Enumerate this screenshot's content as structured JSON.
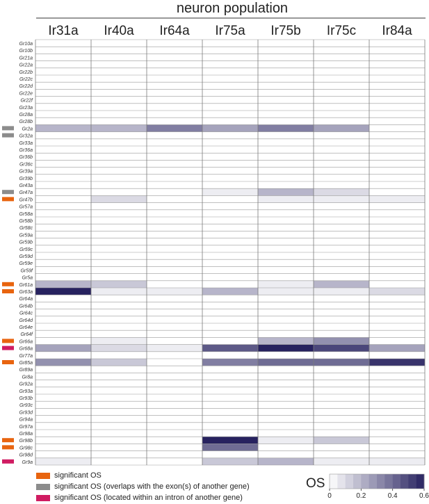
{
  "chart_data": {
    "type": "heatmap",
    "title": "neuron population",
    "columns": [
      "Ir31a",
      "Ir40a",
      "Ir64a",
      "Ir75a",
      "Ir75b",
      "Ir75c",
      "Ir84a"
    ],
    "rows": [
      "Gr10a",
      "Gr10b",
      "Gr21a",
      "Gr22a",
      "Gr22b",
      "Gr22c",
      "Gr22d",
      "Gr22e",
      "Gr22f",
      "Gr23a",
      "Gr28a",
      "Gr28b",
      "Gr2a",
      "Gr32a",
      "Gr33a",
      "Gr36a",
      "Gr36b",
      "Gr36c",
      "Gr39a",
      "Gr39b",
      "Gr43a",
      "Gr47a",
      "Gr47b",
      "Gr57a",
      "Gr58a",
      "Gr58b",
      "Gr58c",
      "Gr59a",
      "Gr59b",
      "Gr59c",
      "Gr59d",
      "Gr59e",
      "Gr59f",
      "Gr5a",
      "Gr61a",
      "Gr63a",
      "Gr64a",
      "Gr64b",
      "Gr64c",
      "Gr64d",
      "Gr64e",
      "Gr64f",
      "Gr66a",
      "Gr68a",
      "Gr77a",
      "Gr85a",
      "Gr89a",
      "Gr8a",
      "Gr92a",
      "Gr93a",
      "Gr93b",
      "Gr93c",
      "Gr93d",
      "Gr94a",
      "Gr97a",
      "Gr98a",
      "Gr98b",
      "Gr98c",
      "Gr98d",
      "Gr9a"
    ],
    "values": [
      [
        0,
        0,
        0,
        0,
        0,
        0,
        0
      ],
      [
        0,
        0,
        0,
        0,
        0,
        0,
        0
      ],
      [
        0,
        0,
        0,
        0,
        0,
        0,
        0
      ],
      [
        0,
        0,
        0,
        0,
        0,
        0,
        0
      ],
      [
        0,
        0,
        0,
        0,
        0,
        0,
        0
      ],
      [
        0,
        0,
        0,
        0,
        0,
        0,
        0
      ],
      [
        0,
        0,
        0,
        0,
        0,
        0,
        0
      ],
      [
        0,
        0,
        0,
        0,
        0,
        0,
        0
      ],
      [
        0,
        0,
        0,
        0,
        0,
        0,
        0
      ],
      [
        0,
        0,
        0,
        0,
        0,
        0,
        0
      ],
      [
        0,
        0,
        0,
        0,
        0,
        0,
        0
      ],
      [
        0,
        0,
        0,
        0,
        0,
        0,
        0
      ],
      [
        0.2,
        0.2,
        0.35,
        0.25,
        0.35,
        0.25,
        0
      ],
      [
        0,
        0,
        0,
        0,
        0,
        0,
        0
      ],
      [
        0,
        0,
        0,
        0,
        0,
        0,
        0
      ],
      [
        0,
        0,
        0,
        0,
        0,
        0,
        0
      ],
      [
        0,
        0,
        0,
        0,
        0,
        0,
        0
      ],
      [
        0,
        0,
        0,
        0,
        0,
        0,
        0
      ],
      [
        0,
        0,
        0,
        0,
        0,
        0,
        0
      ],
      [
        0,
        0,
        0,
        0,
        0,
        0,
        0
      ],
      [
        0,
        0,
        0,
        0,
        0,
        0,
        0
      ],
      [
        0,
        0,
        0,
        0.05,
        0.2,
        0.1,
        0
      ],
      [
        0,
        0.1,
        0,
        0,
        0.05,
        0.05,
        0.05
      ],
      [
        0,
        0,
        0,
        0,
        0,
        0,
        0
      ],
      [
        0,
        0,
        0,
        0,
        0,
        0,
        0
      ],
      [
        0,
        0,
        0,
        0,
        0,
        0,
        0
      ],
      [
        0,
        0,
        0,
        0,
        0,
        0,
        0
      ],
      [
        0,
        0,
        0,
        0,
        0,
        0,
        0
      ],
      [
        0,
        0,
        0,
        0,
        0,
        0,
        0
      ],
      [
        0,
        0,
        0,
        0,
        0,
        0,
        0
      ],
      [
        0,
        0,
        0,
        0,
        0,
        0,
        0
      ],
      [
        0,
        0,
        0,
        0,
        0,
        0,
        0
      ],
      [
        0,
        0,
        0,
        0,
        0,
        0,
        0
      ],
      [
        0,
        0,
        0,
        0,
        0,
        0,
        0
      ],
      [
        0.2,
        0.15,
        0,
        0,
        0.05,
        0.2,
        0
      ],
      [
        0.6,
        0.05,
        0.05,
        0.2,
        0.05,
        0.05,
        0.1
      ],
      [
        0,
        0,
        0,
        0,
        0,
        0,
        0
      ],
      [
        0,
        0,
        0,
        0,
        0,
        0,
        0
      ],
      [
        0,
        0,
        0,
        0,
        0,
        0,
        0
      ],
      [
        0,
        0,
        0,
        0,
        0,
        0,
        0
      ],
      [
        0,
        0,
        0,
        0,
        0,
        0,
        0
      ],
      [
        0,
        0,
        0,
        0,
        0,
        0,
        0
      ],
      [
        0,
        0.05,
        0,
        0,
        0.2,
        0.3,
        0
      ],
      [
        0.25,
        0.1,
        0.05,
        0.45,
        0.6,
        0.5,
        0.25
      ],
      [
        0,
        0,
        0,
        0,
        0,
        0,
        0
      ],
      [
        0.3,
        0.15,
        0,
        0.35,
        0.4,
        0.4,
        0.55
      ],
      [
        0,
        0,
        0,
        0,
        0,
        0,
        0
      ],
      [
        0,
        0,
        0,
        0,
        0,
        0,
        0
      ],
      [
        0,
        0,
        0,
        0,
        0,
        0,
        0
      ],
      [
        0,
        0,
        0,
        0,
        0,
        0,
        0
      ],
      [
        0,
        0,
        0,
        0,
        0,
        0,
        0
      ],
      [
        0,
        0,
        0,
        0,
        0,
        0,
        0
      ],
      [
        0,
        0,
        0,
        0,
        0,
        0,
        0
      ],
      [
        0,
        0,
        0,
        0,
        0,
        0,
        0
      ],
      [
        0,
        0,
        0,
        0,
        0,
        0,
        0
      ],
      [
        0,
        0,
        0,
        0,
        0,
        0,
        0
      ],
      [
        0,
        0,
        0,
        0.6,
        0.05,
        0.15,
        0
      ],
      [
        0,
        0,
        0,
        0.4,
        0,
        0,
        0
      ],
      [
        0,
        0,
        0,
        0,
        0,
        0,
        0
      ],
      [
        0.05,
        0,
        0,
        0.15,
        0.2,
        0.05,
        0.05
      ]
    ],
    "markers": {
      "Gr2a": "gray",
      "Gr32a": "gray",
      "Gr47a": "gray",
      "Gr47b": "orange",
      "Gr61a": "orange",
      "Gr63a": "orange",
      "Gr66a": "orange",
      "Gr68a": "magenta",
      "Gr85a": "orange",
      "Gr98b": "orange",
      "Gr98c": "orange",
      "Gr9a": "magenta"
    },
    "colorbar": {
      "label": "OS",
      "min": 0,
      "max": 0.6,
      "ticks": [
        "0",
        "0.2",
        "0.4",
        "0.6"
      ]
    },
    "legend": [
      {
        "key": "orange",
        "color": "#e8640f",
        "label": "significant OS"
      },
      {
        "key": "gray",
        "color": "#8c8c8c",
        "label": "significant OS (overlaps with the exon(s) of another gene)"
      },
      {
        "key": "magenta",
        "color": "#d01c62",
        "label": "significant OS (located within an intron of another gene)"
      }
    ],
    "colors": {
      "low": "#ffffff",
      "high": "#27225f"
    }
  }
}
